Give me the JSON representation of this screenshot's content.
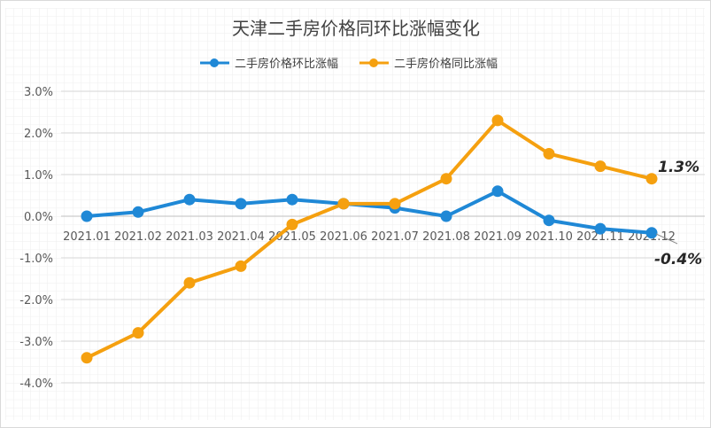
{
  "chart_data": {
    "type": "line",
    "title": "天津二手房价格同环比涨幅变化",
    "categories": [
      "2021.01",
      "2021.02",
      "2021.03",
      "2021.04",
      "2021.05",
      "2021.06",
      "2021.07",
      "2021.08",
      "2021.09",
      "2021.10",
      "2021.11",
      "2021.12"
    ],
    "series": [
      {
        "name": "二手房价格环比涨幅",
        "color": "#1f88d6",
        "values": [
          0.0,
          0.1,
          0.4,
          0.3,
          0.4,
          0.3,
          0.2,
          0.0,
          0.6,
          -0.1,
          -0.3,
          -0.4
        ]
      },
      {
        "name": "二手房价格同比涨幅",
        "color": "#f5a00f",
        "values": [
          -3.4,
          -2.8,
          -1.6,
          -1.2,
          -0.2,
          0.3,
          0.3,
          0.9,
          2.3,
          1.5,
          1.2,
          0.9
        ]
      }
    ],
    "ylim": [
      -4.0,
      3.0
    ],
    "yticks": [
      "3.0%",
      "2.0%",
      "1.0%",
      "0.0%",
      "-1.0%",
      "-2.0%",
      "-3.0%",
      "-4.0%"
    ],
    "annotations": [
      "1.3%",
      "-0.4%"
    ],
    "legend": "top",
    "grid": true
  }
}
